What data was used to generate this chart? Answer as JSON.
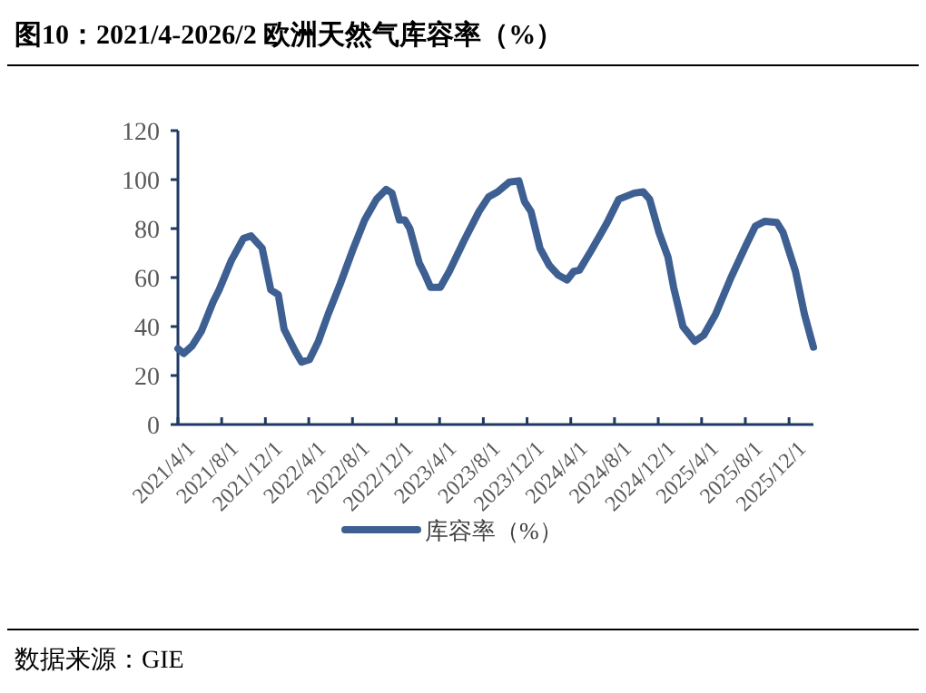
{
  "chart_data": {
    "type": "line",
    "title": "图10：2021/4-2026/2 欧洲天然气库容率（%）",
    "annotations": [
      "数据来源：GIE"
    ],
    "x": [
      "2021-04-01",
      "2021-04-17",
      "2021-05-10",
      "2021-06-05",
      "2021-07-08",
      "2021-07-25",
      "2021-08-28",
      "2021-10-01",
      "2021-10-22",
      "2021-11-22",
      "2021-12-16",
      "2022-01-06",
      "2022-01-22",
      "2022-02-22",
      "2022-03-12",
      "2022-04-03",
      "2022-04-28",
      "2022-05-25",
      "2022-06-28",
      "2022-08-01",
      "2022-09-04",
      "2022-10-07",
      "2022-11-03",
      "2022-11-19",
      "2022-12-10",
      "2022-12-25",
      "2023-01-08",
      "2023-02-03",
      "2023-02-20",
      "2023-03-07",
      "2023-04-03",
      "2023-04-28",
      "2023-06-08",
      "2023-07-20",
      "2023-08-16",
      "2023-09-10",
      "2023-10-13",
      "2023-11-08",
      "2023-11-24",
      "2023-12-12",
      "2024-01-06",
      "2024-02-01",
      "2024-02-26",
      "2024-03-22",
      "2024-04-09",
      "2024-04-25",
      "2024-05-28",
      "2024-07-10",
      "2024-08-13",
      "2024-09-25",
      "2024-10-20",
      "2024-11-07",
      "2024-12-03",
      "2024-12-28",
      "2025-01-13",
      "2025-02-08",
      "2025-03-13",
      "2025-04-07",
      "2025-05-10",
      "2025-06-22",
      "2025-08-04",
      "2025-08-29",
      "2025-09-25",
      "2025-10-28",
      "2025-11-14",
      "2025-12-19",
      "2026-01-13",
      "2026-02-07"
    ],
    "series": [
      {
        "name": "库容率（%）",
        "color": "#3d5f92",
        "values": [
          31,
          29,
          32,
          38,
          50,
          55,
          67,
          76,
          77,
          72,
          55,
          53,
          39,
          30,
          25.5,
          26.5,
          34,
          45,
          57.5,
          71,
          83.5,
          92,
          96,
          94.5,
          83.5,
          83.5,
          80,
          66,
          61,
          56,
          56,
          62.5,
          75,
          87,
          93,
          95,
          99,
          99.5,
          91,
          87,
          72,
          65,
          61,
          59,
          62.5,
          63,
          71,
          82,
          92,
          94.5,
          95,
          92,
          78.5,
          68.5,
          56,
          40,
          34,
          36.5,
          45,
          60,
          73.5,
          81,
          83,
          82.5,
          78.5,
          62.5,
          45,
          31.6
        ]
      }
    ],
    "xlim": [
      "2021-04-01",
      "2026-02-07"
    ],
    "xticks": [
      {
        "value": "2021-04-01",
        "label": "2021/4/1"
      },
      {
        "value": "2021-08-01",
        "label": "2021/8/1"
      },
      {
        "value": "2021-12-01",
        "label": "2021/12/1"
      },
      {
        "value": "2022-04-01",
        "label": "2022/4/1"
      },
      {
        "value": "2022-08-01",
        "label": "2022/8/1"
      },
      {
        "value": "2022-12-01",
        "label": "2022/12/1"
      },
      {
        "value": "2023-04-01",
        "label": "2023/4/1"
      },
      {
        "value": "2023-08-01",
        "label": "2023/8/1"
      },
      {
        "value": "2023-12-01",
        "label": "2023/12/1"
      },
      {
        "value": "2024-04-01",
        "label": "2024/4/1"
      },
      {
        "value": "2024-08-01",
        "label": "2024/8/1"
      },
      {
        "value": "2024-12-01",
        "label": "2024/12/1"
      },
      {
        "value": "2025-04-01",
        "label": "2025/4/1"
      },
      {
        "value": "2025-08-01",
        "label": "2025/8/1"
      },
      {
        "value": "2025-12-01",
        "label": "2025/12/1"
      }
    ],
    "ylim": [
      0,
      120
    ],
    "yticks": [
      0,
      20,
      40,
      60,
      80,
      100,
      120
    ],
    "grid": false,
    "legend": "bottom",
    "marker": "none",
    "line_style": "solid"
  }
}
